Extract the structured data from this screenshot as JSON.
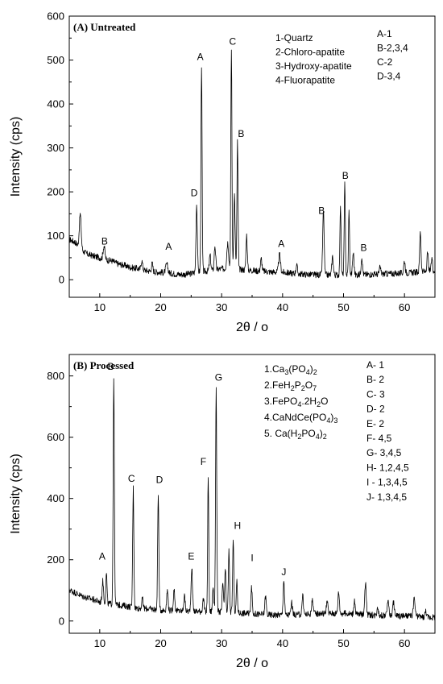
{
  "chart_data": [
    {
      "type": "line",
      "panel_label": "(A) Untreated",
      "xlabel": "2θ / o",
      "ylabel": "Intensity (cps)",
      "xlim": [
        5,
        65
      ],
      "ylim": [
        -40,
        600
      ],
      "xticks": [
        "10",
        "20",
        "30",
        "40",
        "50",
        "60"
      ],
      "yticks": [
        "0",
        "100",
        "200",
        "300",
        "400",
        "500",
        "600"
      ],
      "legend_left": [
        "1-Quartz",
        "2-Chloro-apatite",
        "3-Hydroxy-apatite",
        "4-Fluorapatite"
      ],
      "legend_right": [
        "A-1",
        "B-2,3,4",
        "C-2",
        "D-3,4"
      ],
      "baseline": [
        [
          5,
          92
        ],
        [
          6,
          85
        ],
        [
          7,
          68
        ],
        [
          8,
          58
        ],
        [
          9,
          54
        ],
        [
          10,
          50
        ],
        [
          11,
          45
        ],
        [
          12,
          43
        ],
        [
          13,
          36
        ],
        [
          14,
          33
        ],
        [
          15,
          28
        ],
        [
          16,
          26
        ],
        [
          17,
          23
        ],
        [
          18,
          20
        ],
        [
          19,
          18
        ],
        [
          20,
          17
        ],
        [
          21,
          15
        ],
        [
          22,
          14
        ],
        [
          23,
          12
        ],
        [
          24,
          12
        ],
        [
          25,
          14
        ],
        [
          26,
          18
        ],
        [
          28,
          20
        ],
        [
          30,
          25
        ],
        [
          32,
          25
        ],
        [
          34,
          22
        ],
        [
          36,
          20
        ],
        [
          38,
          18
        ],
        [
          40,
          17
        ],
        [
          42,
          14
        ],
        [
          44,
          12
        ],
        [
          46,
          11
        ],
        [
          48,
          11
        ],
        [
          50,
          11
        ],
        [
          52,
          11
        ],
        [
          54,
          12
        ],
        [
          56,
          13
        ],
        [
          58,
          14
        ],
        [
          60,
          15
        ],
        [
          62,
          17
        ],
        [
          64,
          19
        ],
        [
          65,
          20
        ]
      ],
      "peaks": [
        {
          "x": 6.8,
          "y": 78,
          "w": 0.25
        },
        {
          "x": 10.7,
          "y": 30,
          "w": 0.25
        },
        {
          "x": 16.9,
          "y": 20,
          "w": 0.2
        },
        {
          "x": 18.6,
          "y": 18,
          "w": 0.2
        },
        {
          "x": 21.0,
          "y": 20,
          "w": 0.3
        },
        {
          "x": 25.9,
          "y": 155,
          "w": 0.18
        },
        {
          "x": 26.7,
          "y": 470,
          "w": 0.15
        },
        {
          "x": 28.1,
          "y": 35,
          "w": 0.2
        },
        {
          "x": 28.9,
          "y": 55,
          "w": 0.2
        },
        {
          "x": 31.0,
          "y": 60,
          "w": 0.25
        },
        {
          "x": 31.6,
          "y": 500,
          "w": 0.15
        },
        {
          "x": 32.1,
          "y": 170,
          "w": 0.18
        },
        {
          "x": 32.6,
          "y": 290,
          "w": 0.15
        },
        {
          "x": 34.1,
          "y": 80,
          "w": 0.18
        },
        {
          "x": 36.5,
          "y": 28,
          "w": 0.2
        },
        {
          "x": 39.5,
          "y": 40,
          "w": 0.25
        },
        {
          "x": 42.3,
          "y": 20,
          "w": 0.2
        },
        {
          "x": 46.7,
          "y": 145,
          "w": 0.2
        },
        {
          "x": 48.2,
          "y": 42,
          "w": 0.2
        },
        {
          "x": 49.5,
          "y": 160,
          "w": 0.15
        },
        {
          "x": 50.2,
          "y": 205,
          "w": 0.15
        },
        {
          "x": 50.9,
          "y": 145,
          "w": 0.15
        },
        {
          "x": 51.6,
          "y": 50,
          "w": 0.2
        },
        {
          "x": 53.0,
          "y": 40,
          "w": 0.2
        },
        {
          "x": 56.0,
          "y": 15,
          "w": 0.2
        },
        {
          "x": 60.0,
          "y": 28,
          "w": 0.2
        },
        {
          "x": 62.6,
          "y": 95,
          "w": 0.18
        },
        {
          "x": 63.8,
          "y": 42,
          "w": 0.18
        },
        {
          "x": 64.5,
          "y": 30,
          "w": 0.18
        }
      ],
      "peak_labels": [
        {
          "text": "B",
          "x": 10.8,
          "y": 80
        },
        {
          "text": "A",
          "x": 21.3,
          "y": 68
        },
        {
          "text": "D",
          "x": 25.5,
          "y": 190
        },
        {
          "text": "A",
          "x": 26.5,
          "y": 500
        },
        {
          "text": "C",
          "x": 31.8,
          "y": 535
        },
        {
          "text": "B",
          "x": 33.2,
          "y": 325
        },
        {
          "text": "A",
          "x": 39.8,
          "y": 75
        },
        {
          "text": "B",
          "x": 46.4,
          "y": 150
        },
        {
          "text": "B",
          "x": 50.3,
          "y": 230
        },
        {
          "text": "B",
          "x": 53.3,
          "y": 65
        }
      ]
    },
    {
      "type": "line",
      "panel_label": "(B) Processed",
      "xlabel": "2θ / o",
      "ylabel": "Intensity (cps)",
      "xlim": [
        5,
        65
      ],
      "ylim": [
        -40,
        870
      ],
      "xticks": [
        "10",
        "20",
        "30",
        "40",
        "50",
        "60"
      ],
      "yticks": [
        "0",
        "200",
        "400",
        "600",
        "800"
      ],
      "legend_left": [
        {
          "t": [
            "1.Ca",
            "3",
            "(PO",
            "4",
            ")",
            "2"
          ],
          "s": [
            0,
            1,
            0,
            1,
            0,
            1
          ]
        },
        {
          "t": [
            "2.FeH",
            "2",
            "P",
            "2",
            "O",
            "7"
          ],
          "s": [
            0,
            1,
            0,
            1,
            0,
            1
          ]
        },
        {
          "t": [
            "3.FePO",
            "4",
            ".2H",
            "2",
            "O"
          ],
          "s": [
            0,
            1,
            0,
            1,
            0
          ]
        },
        {
          "t": [
            "4.CaNdCe(PO",
            "4",
            ")",
            "3"
          ],
          "s": [
            0,
            1,
            0,
            1
          ]
        },
        {
          "t": [
            "5. Ca(H",
            "2",
            "PO",
            "4",
            ")",
            "2"
          ],
          "s": [
            0,
            1,
            0,
            1,
            0,
            1
          ]
        }
      ],
      "legend_right": [
        "A- 1",
        "B- 2",
        "C- 3",
        "D- 2",
        "E- 2",
        "F- 4,5",
        "G- 3,4,5",
        "H- 1,2,4,5",
        "I -  1,3,4,5",
        "J- 1,3,4,5"
      ],
      "baseline": [
        [
          5,
          102
        ],
        [
          6,
          92
        ],
        [
          7,
          82
        ],
        [
          8,
          75
        ],
        [
          9,
          70
        ],
        [
          10,
          62
        ],
        [
          12,
          55
        ],
        [
          14,
          50
        ],
        [
          16,
          42
        ],
        [
          18,
          40
        ],
        [
          20,
          36
        ],
        [
          22,
          33
        ],
        [
          24,
          32
        ],
        [
          26,
          32
        ],
        [
          28,
          30
        ],
        [
          30,
          30
        ],
        [
          32,
          28
        ],
        [
          34,
          25
        ],
        [
          36,
          22
        ],
        [
          38,
          20
        ],
        [
          40,
          20
        ],
        [
          42,
          20
        ],
        [
          44,
          22
        ],
        [
          46,
          25
        ],
        [
          48,
          25
        ],
        [
          50,
          25
        ],
        [
          52,
          22
        ],
        [
          54,
          20
        ],
        [
          56,
          18
        ],
        [
          58,
          18
        ],
        [
          60,
          16
        ],
        [
          62,
          15
        ],
        [
          64,
          12
        ],
        [
          65,
          12
        ]
      ],
      "peaks": [
        {
          "x": 10.5,
          "y": 70,
          "w": 0.2
        },
        {
          "x": 11.1,
          "y": 100,
          "w": 0.15
        },
        {
          "x": 12.3,
          "y": 745,
          "w": 0.16
        },
        {
          "x": 15.5,
          "y": 390,
          "w": 0.16
        },
        {
          "x": 17.0,
          "y": 30,
          "w": 0.2
        },
        {
          "x": 19.6,
          "y": 380,
          "w": 0.16
        },
        {
          "x": 21.1,
          "y": 65,
          "w": 0.2
        },
        {
          "x": 22.2,
          "y": 70,
          "w": 0.2
        },
        {
          "x": 23.9,
          "y": 50,
          "w": 0.2
        },
        {
          "x": 25.1,
          "y": 140,
          "w": 0.2
        },
        {
          "x": 27.0,
          "y": 40,
          "w": 0.2
        },
        {
          "x": 27.8,
          "y": 440,
          "w": 0.15
        },
        {
          "x": 28.6,
          "y": 80,
          "w": 0.18
        },
        {
          "x": 29.1,
          "y": 735,
          "w": 0.16
        },
        {
          "x": 30.2,
          "y": 90,
          "w": 0.18
        },
        {
          "x": 30.6,
          "y": 140,
          "w": 0.16
        },
        {
          "x": 31.2,
          "y": 200,
          "w": 0.16
        },
        {
          "x": 31.9,
          "y": 240,
          "w": 0.16
        },
        {
          "x": 32.5,
          "y": 100,
          "w": 0.16
        },
        {
          "x": 34.9,
          "y": 90,
          "w": 0.18
        },
        {
          "x": 37.2,
          "y": 60,
          "w": 0.2
        },
        {
          "x": 40.2,
          "y": 115,
          "w": 0.18
        },
        {
          "x": 41.5,
          "y": 40,
          "w": 0.2
        },
        {
          "x": 43.3,
          "y": 60,
          "w": 0.2
        },
        {
          "x": 44.9,
          "y": 50,
          "w": 0.2
        },
        {
          "x": 47.3,
          "y": 40,
          "w": 0.2
        },
        {
          "x": 49.2,
          "y": 70,
          "w": 0.2
        },
        {
          "x": 51.8,
          "y": 40,
          "w": 0.2
        },
        {
          "x": 53.6,
          "y": 105,
          "w": 0.22
        },
        {
          "x": 55.6,
          "y": 30,
          "w": 0.2
        },
        {
          "x": 57.3,
          "y": 55,
          "w": 0.2
        },
        {
          "x": 58.2,
          "y": 45,
          "w": 0.2
        },
        {
          "x": 61.6,
          "y": 55,
          "w": 0.25
        },
        {
          "x": 63.5,
          "y": 20,
          "w": 0.2
        }
      ],
      "peak_labels": [
        {
          "text": "A",
          "x": 10.4,
          "y": 200
        },
        {
          "text": "B",
          "x": 11.8,
          "y": 820
        },
        {
          "text": "C",
          "x": 15.2,
          "y": 455
        },
        {
          "text": "D",
          "x": 19.8,
          "y": 450
        },
        {
          "text": "E",
          "x": 25.0,
          "y": 200
        },
        {
          "text": "F",
          "x": 27.0,
          "y": 510
        },
        {
          "text": "G",
          "x": 29.5,
          "y": 785
        },
        {
          "text": "H",
          "x": 32.6,
          "y": 300
        },
        {
          "text": "I",
          "x": 35.0,
          "y": 195
        },
        {
          "text": "J",
          "x": 40.2,
          "y": 150
        }
      ]
    }
  ]
}
